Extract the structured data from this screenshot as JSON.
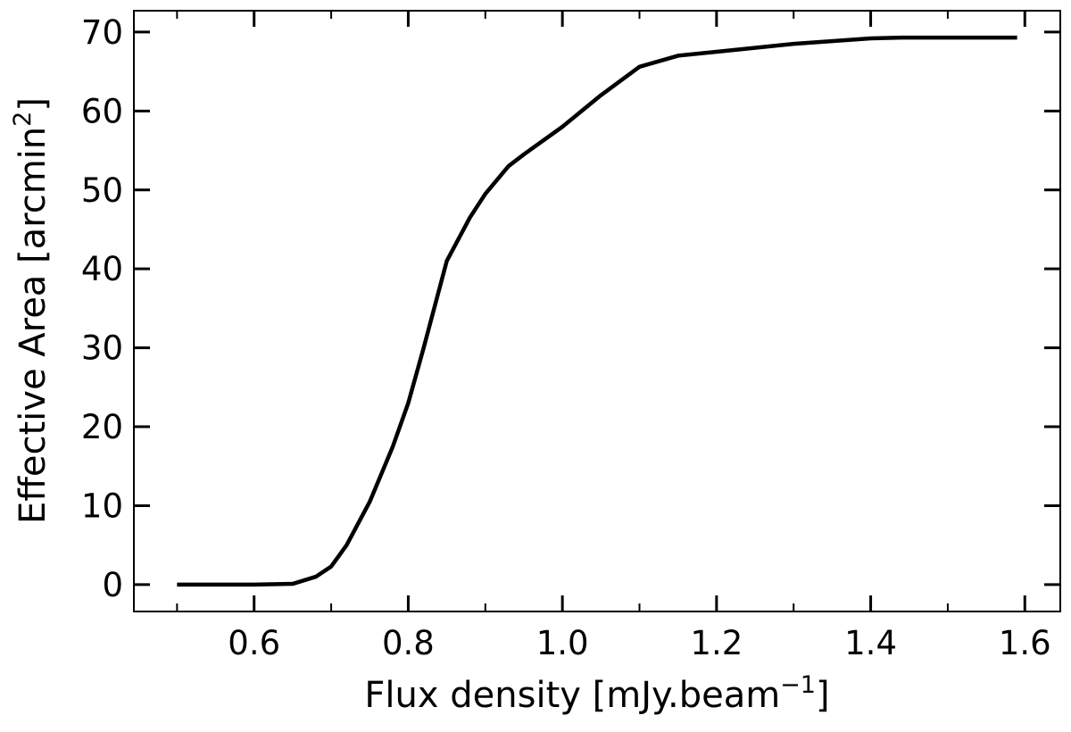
{
  "chart_data": {
    "type": "line",
    "xlabel": {
      "text": "Flux density [mJy.beam",
      "sup": "−1",
      "end": "]"
    },
    "ylabel": {
      "text": "Effective Area [arcmin",
      "sup": "2",
      "end": "]"
    },
    "x": [
      0.5,
      0.6,
      0.65,
      0.68,
      0.7,
      0.72,
      0.75,
      0.78,
      0.8,
      0.82,
      0.85,
      0.88,
      0.9,
      0.93,
      0.95,
      1.0,
      1.05,
      1.1,
      1.15,
      1.2,
      1.3,
      1.4,
      1.44,
      1.5,
      1.59
    ],
    "series": [
      {
        "color": "#000000",
        "values": [
          0,
          0,
          0.1,
          1,
          2.3,
          5,
          10.5,
          17.5,
          23,
          30,
          41,
          46.5,
          49.5,
          53,
          54.5,
          58,
          62,
          65.6,
          67,
          67.5,
          68.5,
          69.2,
          69.3,
          69.3,
          69.3
        ]
      }
    ],
    "xlim": [
      0.444,
      1.646
    ],
    "ylim": [
      -3.4,
      72.7
    ],
    "xticks": [
      0.6,
      0.8,
      {
        "value": 1,
        "label": "1.0"
      },
      1.2,
      1.4,
      1.6
    ],
    "xminorticks": [
      0.5,
      0.7,
      0.9,
      1.1,
      1.3,
      1.5
    ],
    "yticks": [
      0,
      10,
      20,
      30,
      40,
      50,
      60,
      70
    ]
  }
}
